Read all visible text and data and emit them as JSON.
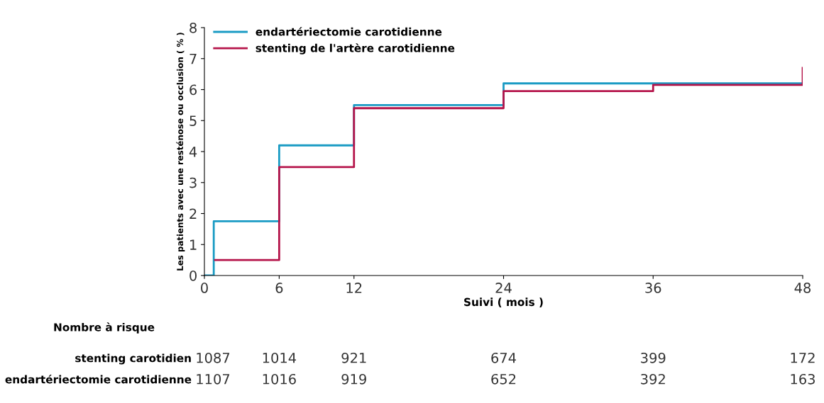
{
  "chart_data": {
    "type": "step",
    "xlabel": "Suivi ( mois )",
    "ylabel": "Les patients avec une resténose ou occlusion ( % )",
    "series": [
      {
        "name": "endartériectomie carotidienne",
        "color": "#1a9bc4",
        "x": [
          0,
          0.75,
          6,
          12,
          24,
          48
        ],
        "values": [
          0,
          1.75,
          4.2,
          5.5,
          6.2,
          6.2
        ]
      },
      {
        "name": "stenting de l'artère carotidienne",
        "color": "#b5144a",
        "x": [
          0.85,
          6,
          12,
          24,
          36,
          48
        ],
        "values": [
          0.5,
          3.5,
          5.4,
          5.95,
          6.15,
          6.7
        ]
      }
    ],
    "xlim": [
      0,
      48
    ],
    "xticks": [
      0,
      6,
      12,
      24,
      36,
      48
    ],
    "ylim": [
      0,
      8
    ],
    "yticks": [
      0,
      1,
      2,
      3,
      4,
      5,
      6,
      7,
      8
    ],
    "grid": false,
    "legend": "top left",
    "annotations": [
      "Nombre à risque",
      "stenting carotidien",
      "1087",
      "1014",
      "921",
      "674",
      "399",
      "172",
      "endartériectomie carotidienne",
      "1107",
      "1016",
      "919",
      "652",
      "392",
      "163"
    ]
  }
}
